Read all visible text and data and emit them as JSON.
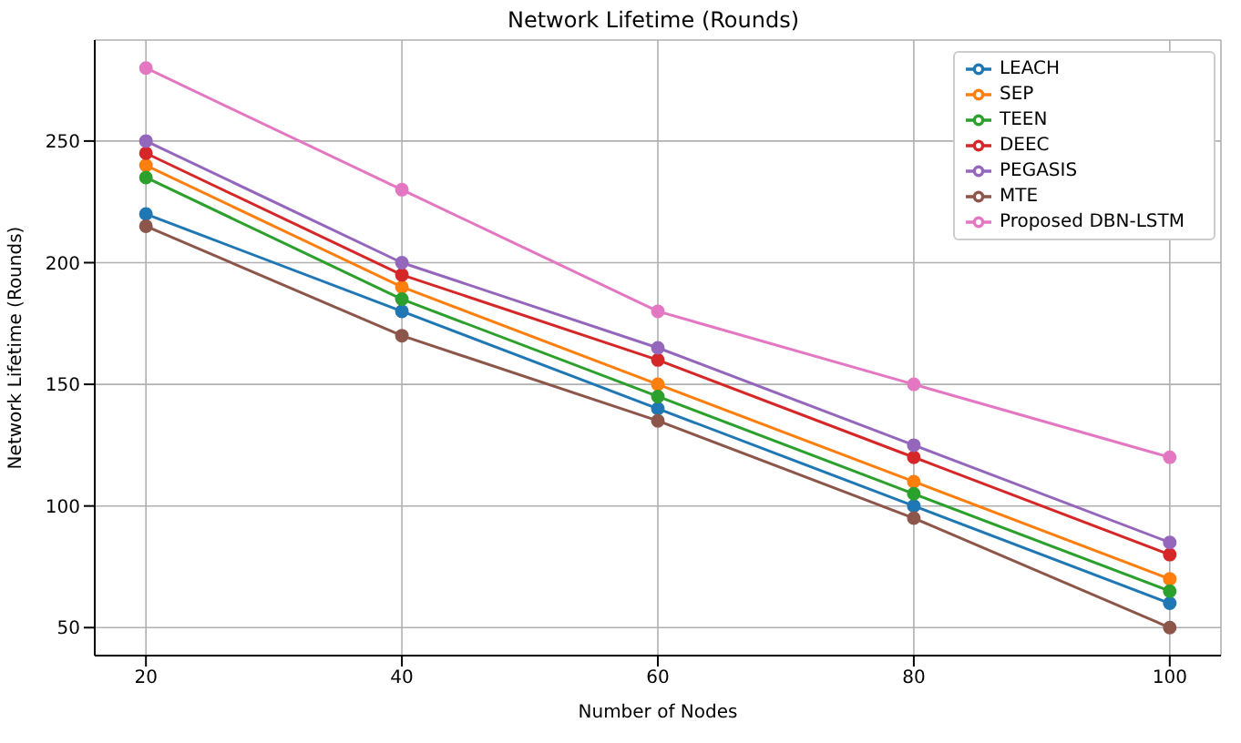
{
  "chart_data": {
    "type": "line",
    "title": "Network Lifetime (Rounds)",
    "xlabel": "Number of Nodes",
    "ylabel": "Network Lifetime (Rounds)",
    "x": [
      20,
      40,
      60,
      80,
      100
    ],
    "series": [
      {
        "name": "LEACH",
        "color": "#1f77b4",
        "values": [
          220,
          180,
          140,
          100,
          60
        ]
      },
      {
        "name": "SEP",
        "color": "#ff7f0e",
        "values": [
          240,
          190,
          150,
          110,
          70
        ]
      },
      {
        "name": "TEEN",
        "color": "#2ca02c",
        "values": [
          235,
          185,
          145,
          105,
          65
        ]
      },
      {
        "name": "DEEC",
        "color": "#d62728",
        "values": [
          245,
          195,
          160,
          120,
          80
        ]
      },
      {
        "name": "PEGASIS",
        "color": "#9467bd",
        "values": [
          250,
          200,
          165,
          125,
          85
        ]
      },
      {
        "name": "MTE",
        "color": "#8c564b",
        "values": [
          215,
          170,
          135,
          95,
          50
        ]
      },
      {
        "name": "Proposed DBN-LSTM",
        "color": "#e377c2",
        "values": [
          280,
          230,
          180,
          150,
          120
        ]
      }
    ],
    "xlim": [
      16,
      104
    ],
    "xticks": [
      20,
      40,
      60,
      80,
      100
    ],
    "ylim": [
      38.5,
      291.5
    ],
    "yticks": [
      50,
      100,
      150,
      200,
      250
    ],
    "grid": true,
    "legend": "top right",
    "marker": "circle",
    "line_style": "solid"
  }
}
